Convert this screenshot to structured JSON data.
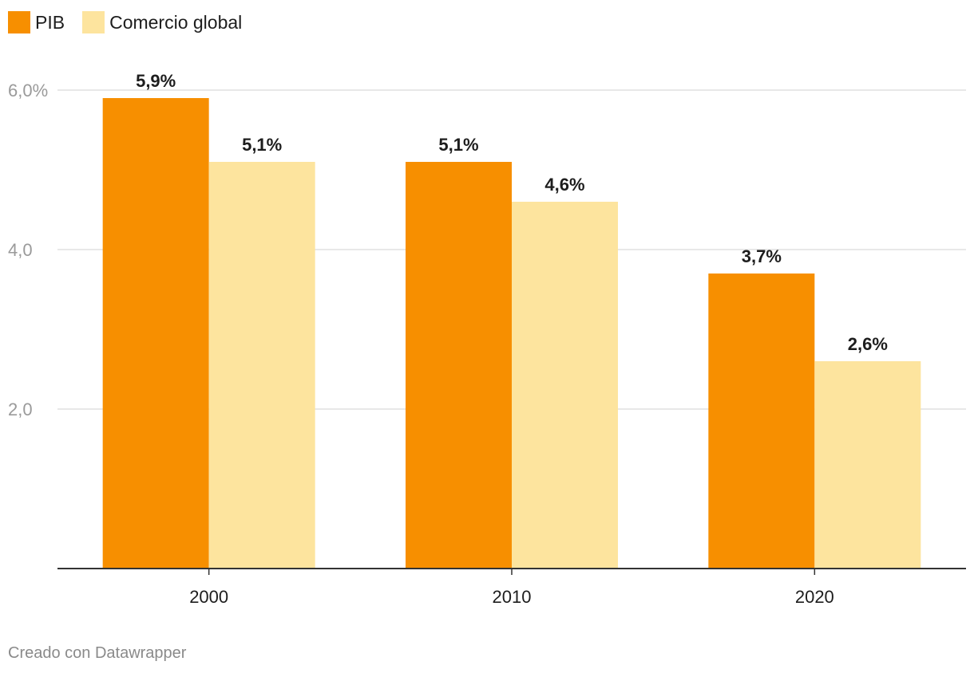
{
  "chart_data": {
    "type": "bar",
    "categories": [
      "2000",
      "2010",
      "2020"
    ],
    "series": [
      {
        "name": "PIB",
        "values": [
          5.9,
          5.1,
          3.7
        ],
        "labels": [
          "5,9%",
          "5,1%",
          "3,7%"
        ],
        "color": "#f78f00"
      },
      {
        "name": "Comercio global",
        "values": [
          5.1,
          4.6,
          2.6
        ],
        "labels": [
          "5,1%",
          "4,6%",
          "2,6%"
        ],
        "color": "#fde49e"
      }
    ],
    "yticks": [
      {
        "value": 2,
        "label": "2,0"
      },
      {
        "value": 4,
        "label": "4,0"
      },
      {
        "value": 6,
        "label": "6,0%"
      }
    ],
    "ylim": [
      0,
      6
    ],
    "grid": true,
    "legend_position": "top-left",
    "title": "",
    "xlabel": "",
    "ylabel": ""
  },
  "footer": {
    "credit": "Creado con Datawrapper"
  }
}
